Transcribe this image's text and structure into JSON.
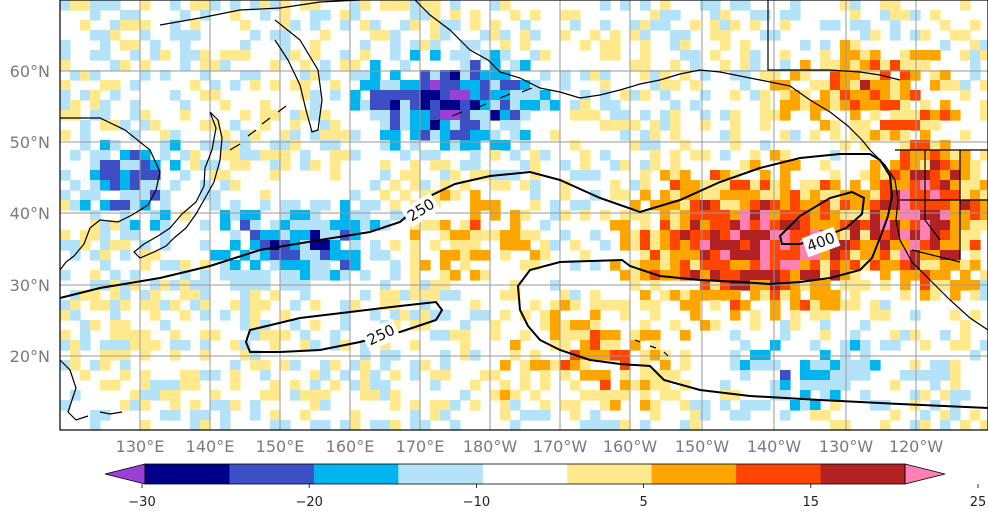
{
  "map": {
    "lon_labels": [
      "130°E",
      "140°E",
      "150°E",
      "160°E",
      "170°E",
      "180°W",
      "170°W",
      "160°W",
      "150°W",
      "140°W",
      "130°W",
      "120°W"
    ],
    "lat_labels": [
      "60°N",
      "50°N",
      "40°N",
      "30°N",
      "20°N"
    ],
    "contour_labels": [
      {
        "text": "250",
        "ref": "upper-west"
      },
      {
        "text": "250",
        "ref": "lower-closed"
      },
      {
        "text": "400",
        "ref": "east-closed"
      }
    ],
    "land_outline_color": "#000000",
    "gridline_color": "#9a9a9a"
  },
  "colorbar": {
    "tick_labels": [
      "−30",
      "−20",
      "−10",
      "5",
      "15",
      "25"
    ],
    "colors": [
      "#9b3fd6",
      "#00008b",
      "#3d4fc4",
      "#00b4f0",
      "#b4e2f8",
      "#ffffff",
      "#ffe98c",
      "#ffa500",
      "#ff4500",
      "#b22222",
      "#ff80b4"
    ],
    "extend": "both"
  }
}
